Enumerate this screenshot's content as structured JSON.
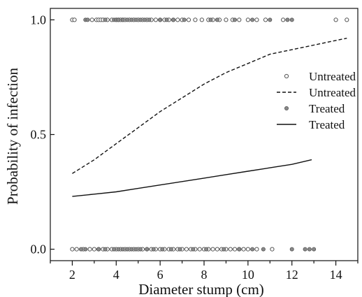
{
  "chart_data": {
    "type": "scatter",
    "xlabel": "Diameter stump (cm)",
    "ylabel": "Probability of infection",
    "xlim": [
      1,
      15
    ],
    "ylim": [
      -0.05,
      1.05
    ],
    "x_ticks": [
      2,
      4,
      6,
      8,
      10,
      12,
      14
    ],
    "y_ticks": [
      0.0,
      0.5,
      1.0
    ],
    "x_tick_labels": [
      "2",
      "4",
      "6",
      "8",
      "10",
      "12",
      "14"
    ],
    "y_tick_labels": [
      "0.0",
      "0.5",
      "1.0"
    ],
    "grid": false,
    "legend_position": "right",
    "legend": [
      {
        "label": "Untreated",
        "kind": "open-circle"
      },
      {
        "label": "Untreated",
        "kind": "dashed-line"
      },
      {
        "label": "Treated",
        "kind": "filled-circle"
      },
      {
        "label": "Treated",
        "kind": "solid-line"
      }
    ],
    "series": [
      {
        "name": "Untreated",
        "kind": "observed",
        "marker": "open-circle",
        "color": "#555555",
        "points_y1": [
          2.0,
          2.1,
          2.9,
          3.1,
          3.2,
          3.3,
          3.4,
          3.6,
          3.8,
          4.0,
          4.1,
          4.2,
          4.3,
          4.4,
          4.6,
          4.8,
          5.0,
          5.2,
          5.4,
          5.6,
          5.8,
          6.0,
          6.2,
          6.4,
          6.6,
          6.8,
          7.0,
          7.3,
          7.6,
          7.9,
          8.2,
          8.4,
          8.7,
          9.0,
          9.3,
          9.6,
          10.0,
          10.4,
          10.8,
          11.6,
          14.0,
          14.5
        ],
        "points_y0": [
          2.0,
          2.2,
          2.5,
          2.8,
          3.0,
          3.2,
          3.4,
          3.6,
          3.8,
          4.0,
          4.2,
          4.4,
          4.6,
          4.8,
          5.0,
          5.2,
          5.4,
          5.6,
          5.8,
          6.0,
          6.2,
          6.4,
          6.6,
          6.8,
          7.0,
          7.2,
          7.4,
          7.6,
          7.8,
          8.0,
          8.2,
          8.4,
          8.6,
          8.8,
          9.0,
          9.2,
          9.4,
          9.6,
          9.8,
          10.0,
          10.4,
          11.1
        ]
      },
      {
        "name": "Untreated",
        "kind": "fitted",
        "line": "dashed",
        "color": "#111111",
        "x": [
          2.0,
          3.0,
          4.0,
          5.0,
          6.0,
          7.0,
          8.0,
          9.0,
          10.0,
          11.0,
          12.0,
          13.0,
          14.0,
          14.5
        ],
        "y": [
          0.33,
          0.39,
          0.46,
          0.53,
          0.6,
          0.66,
          0.72,
          0.77,
          0.81,
          0.85,
          0.87,
          0.89,
          0.91,
          0.92
        ]
      },
      {
        "name": "Treated",
        "kind": "observed",
        "marker": "filled-circle",
        "color": "#8a8a8a",
        "points_y1": [
          2.6,
          2.7,
          3.5,
          3.9,
          4.0,
          4.1,
          4.3,
          4.5,
          4.7,
          4.9,
          5.1,
          5.3,
          5.5,
          6.0,
          6.3,
          6.6,
          7.1,
          8.3,
          8.6,
          9.4,
          10.2,
          11.0,
          11.8,
          12.0
        ],
        "points_y0": [
          2.4,
          2.6,
          3.2,
          3.5,
          3.9,
          4.1,
          4.3,
          4.5,
          4.7,
          4.9,
          5.1,
          5.4,
          5.7,
          6.1,
          6.5,
          6.9,
          7.5,
          8.1,
          8.9,
          9.6,
          10.2,
          10.7,
          12.0,
          12.6,
          12.8,
          13.0
        ]
      },
      {
        "name": "Treated",
        "kind": "fitted",
        "line": "solid",
        "color": "#111111",
        "x": [
          2.0,
          3.0,
          4.0,
          5.0,
          6.0,
          7.0,
          8.0,
          9.0,
          10.0,
          11.0,
          12.0,
          12.9
        ],
        "y": [
          0.23,
          0.24,
          0.25,
          0.265,
          0.28,
          0.295,
          0.31,
          0.325,
          0.34,
          0.355,
          0.37,
          0.39
        ]
      }
    ]
  }
}
